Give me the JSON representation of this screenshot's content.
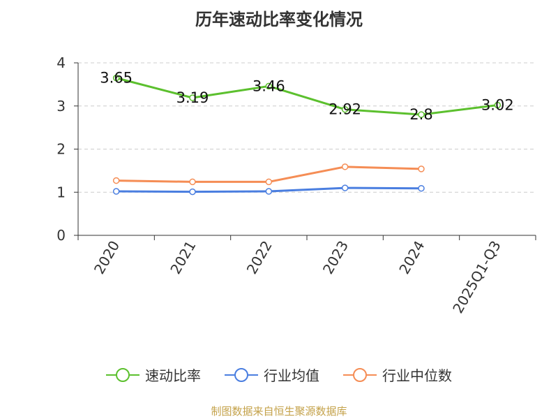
{
  "page": {
    "title": "历年速动比率变化情况",
    "source": "制图数据来自恒生聚源数据库"
  },
  "chart_data": {
    "type": "line",
    "title": "历年速动比率变化情况",
    "categories": [
      "2020",
      "2021",
      "2022",
      "2023",
      "2024",
      "2025Q1-Q3"
    ],
    "ylim": [
      0,
      4
    ],
    "yticks": [
      0,
      1,
      2,
      3,
      4
    ],
    "grid": true,
    "legend_position": "bottom",
    "series": [
      {
        "name": "速动比率",
        "color": "#5cc02e",
        "values": [
          3.65,
          3.19,
          3.46,
          2.92,
          2.8,
          3.02
        ],
        "labels": [
          "3.65",
          "3.19",
          "3.46",
          "2.92",
          "2.8",
          "3.02"
        ]
      },
      {
        "name": "行业均值",
        "color": "#4a7ee0",
        "values": [
          1.02,
          1.01,
          1.02,
          1.1,
          1.09,
          null
        ]
      },
      {
        "name": "行业中位数",
        "color": "#f58d55",
        "values": [
          1.27,
          1.24,
          1.24,
          1.59,
          1.54,
          null
        ]
      }
    ]
  }
}
